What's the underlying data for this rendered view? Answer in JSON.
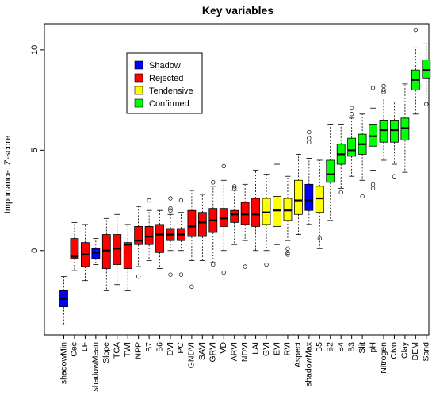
{
  "chart_data": {
    "type": "box",
    "title": "Key variables",
    "ylabel": "Importance: Z-score",
    "xlabel": "",
    "ylim": [
      -4.2,
      11.3
    ],
    "yticks": [
      0,
      5,
      10
    ],
    "legend": {
      "position": "top-left",
      "entries": [
        {
          "label": "Shadow",
          "color": "#0000FF"
        },
        {
          "label": "Rejected",
          "color": "#FF0000"
        },
        {
          "label": "Tendensive",
          "color": "#FFFF00"
        },
        {
          "label": "Confirmed",
          "color": "#00FF00"
        }
      ]
    },
    "boxes": [
      {
        "name": "shadowMin",
        "group": "Shadow",
        "whisker_low": -3.7,
        "q1": -2.8,
        "median": -2.4,
        "q3": -2.0,
        "whisker_high": -1.3,
        "outliers": []
      },
      {
        "name": "Cec",
        "group": "Rejected",
        "whisker_low": -1.0,
        "q1": -0.4,
        "median": -0.3,
        "q3": 0.6,
        "whisker_high": 1.4,
        "outliers": []
      },
      {
        "name": "LF",
        "group": "Rejected",
        "whisker_low": -1.5,
        "q1": -0.8,
        "median": -0.2,
        "q3": 0.4,
        "whisker_high": 1.3,
        "outliers": []
      },
      {
        "name": "shadowMean",
        "group": "Shadow",
        "whisker_low": -0.7,
        "q1": -0.4,
        "median": -0.1,
        "q3": 0.1,
        "whisker_high": 0.6,
        "outliers": []
      },
      {
        "name": "Slope",
        "group": "Rejected",
        "whisker_low": -2.0,
        "q1": -0.9,
        "median": 0.0,
        "q3": 0.8,
        "whisker_high": 1.6,
        "outliers": []
      },
      {
        "name": "TCA",
        "group": "Rejected",
        "whisker_low": -1.7,
        "q1": -0.7,
        "median": 0.1,
        "q3": 0.8,
        "whisker_high": 1.8,
        "outliers": []
      },
      {
        "name": "TWI",
        "group": "Rejected",
        "whisker_low": -2.0,
        "q1": -0.9,
        "median": 0.3,
        "q3": 0.4,
        "whisker_high": 1.3,
        "outliers": []
      },
      {
        "name": "NPP",
        "group": "Rejected",
        "whisker_low": -0.8,
        "q1": 0.3,
        "median": 0.5,
        "q3": 1.2,
        "whisker_high": 2.2,
        "outliers": [
          -1.3
        ]
      },
      {
        "name": "B7",
        "group": "Rejected",
        "whisker_low": -0.5,
        "q1": 0.3,
        "median": 0.7,
        "q3": 1.2,
        "whisker_high": 2.0,
        "outliers": [
          2.5
        ]
      },
      {
        "name": "B6",
        "group": "Rejected",
        "whisker_low": -0.9,
        "q1": -0.1,
        "median": 0.8,
        "q3": 1.3,
        "whisker_high": 2.0,
        "outliers": []
      },
      {
        "name": "DVI",
        "group": "Rejected",
        "whisker_low": 0.0,
        "q1": 0.5,
        "median": 0.8,
        "q3": 1.1,
        "whisker_high": 1.8,
        "outliers": [
          2.6,
          2.1,
          2.0,
          -1.2
        ]
      },
      {
        "name": "PC",
        "group": "Rejected",
        "whisker_low": 0.0,
        "q1": 0.5,
        "median": 0.8,
        "q3": 1.1,
        "whisker_high": 1.9,
        "outliers": [
          2.5,
          -1.2
        ]
      },
      {
        "name": "GNDVI",
        "group": "Rejected",
        "whisker_low": -0.5,
        "q1": 0.7,
        "median": 1.2,
        "q3": 2.0,
        "whisker_high": 3.0,
        "outliers": [
          -1.8
        ]
      },
      {
        "name": "SAVI",
        "group": "Rejected",
        "whisker_low": -0.5,
        "q1": 0.7,
        "median": 1.4,
        "q3": 1.9,
        "whisker_high": 2.8,
        "outliers": []
      },
      {
        "name": "GRVI",
        "group": "Rejected",
        "whisker_low": -0.6,
        "q1": 0.9,
        "median": 1.5,
        "q3": 2.1,
        "whisker_high": 3.2,
        "outliers": [
          3.4,
          -0.7
        ]
      },
      {
        "name": "VD",
        "group": "Rejected",
        "whisker_low": 0.0,
        "q1": 1.2,
        "median": 1.6,
        "q3": 2.1,
        "whisker_high": 3.5,
        "outliers": [
          4.2,
          -1.1
        ]
      },
      {
        "name": "ARVI",
        "group": "Rejected",
        "whisker_low": 0.3,
        "q1": 1.4,
        "median": 1.8,
        "q3": 2.0,
        "whisker_high": 3.0,
        "outliers": [
          3.2,
          3.1
        ]
      },
      {
        "name": "NDVI",
        "group": "Rejected",
        "whisker_low": 0.5,
        "q1": 1.3,
        "median": 1.8,
        "q3": 2.4,
        "whisker_high": 3.3,
        "outliers": [
          -0.8
        ]
      },
      {
        "name": "LAI",
        "group": "Rejected",
        "whisker_low": 0.0,
        "q1": 1.2,
        "median": 1.8,
        "q3": 2.6,
        "whisker_high": 4.0,
        "outliers": []
      },
      {
        "name": "GVI",
        "group": "Tendensive",
        "whisker_low": 0.0,
        "q1": 1.3,
        "median": 1.9,
        "q3": 2.6,
        "whisker_high": 3.8,
        "outliers": [
          -0.7
        ]
      },
      {
        "name": "EVI",
        "group": "Tendensive",
        "whisker_low": 0.3,
        "q1": 1.2,
        "median": 2.0,
        "q3": 2.7,
        "whisker_high": 4.3,
        "outliers": []
      },
      {
        "name": "RVI",
        "group": "Tendensive",
        "whisker_low": 0.5,
        "q1": 1.5,
        "median": 2.0,
        "q3": 2.6,
        "whisker_high": 3.7,
        "outliers": [
          0.1,
          -0.1,
          -0.2
        ]
      },
      {
        "name": "Aspect",
        "group": "Tendensive",
        "whisker_low": 0.8,
        "q1": 1.8,
        "median": 2.5,
        "q3": 3.5,
        "whisker_high": 4.8,
        "outliers": []
      },
      {
        "name": "shadowMax",
        "group": "Shadow",
        "whisker_low": 1.3,
        "q1": 2.0,
        "median": 2.5,
        "q3": 3.3,
        "whisker_high": 4.6,
        "outliers": [
          5.9,
          5.6,
          5.4
        ]
      },
      {
        "name": "B5",
        "group": "Tendensive",
        "whisker_low": 0.1,
        "q1": 1.9,
        "median": 2.6,
        "q3": 3.2,
        "whisker_high": 4.5,
        "outliers": [
          0.6
        ]
      },
      {
        "name": "B2",
        "group": "Confirmed",
        "whisker_low": 1.5,
        "q1": 3.4,
        "median": 3.8,
        "q3": 4.5,
        "whisker_high": 6.3,
        "outliers": []
      },
      {
        "name": "B4",
        "group": "Confirmed",
        "whisker_low": 3.1,
        "q1": 4.3,
        "median": 4.8,
        "q3": 5.3,
        "whisker_high": 6.3,
        "outliers": [
          2.9
        ]
      },
      {
        "name": "B3",
        "group": "Confirmed",
        "whisker_low": 3.7,
        "q1": 4.7,
        "median": 5.0,
        "q3": 5.6,
        "whisker_high": 6.6,
        "outliers": [
          7.1,
          6.8
        ]
      },
      {
        "name": "Slit",
        "group": "Confirmed",
        "whisker_low": 3.5,
        "q1": 4.8,
        "median": 5.3,
        "q3": 5.8,
        "whisker_high": 6.8,
        "outliers": [
          2.7
        ]
      },
      {
        "name": "pH",
        "group": "Confirmed",
        "whisker_low": 4.0,
        "q1": 5.2,
        "median": 5.7,
        "q3": 6.3,
        "whisker_high": 7.1,
        "outliers": [
          8.1,
          3.3,
          3.1
        ]
      },
      {
        "name": "Nitrogen",
        "group": "Confirmed",
        "whisker_low": 4.5,
        "q1": 5.4,
        "median": 6.0,
        "q3": 6.5,
        "whisker_high": 7.6,
        "outliers": [
          8.2,
          8.0,
          7.9
        ]
      },
      {
        "name": "Ctvo",
        "group": "Confirmed",
        "whisker_low": 4.3,
        "q1": 5.4,
        "median": 6.0,
        "q3": 6.5,
        "whisker_high": 7.4,
        "outliers": [
          3.7
        ]
      },
      {
        "name": "Clay",
        "group": "Confirmed",
        "whisker_low": 3.9,
        "q1": 5.5,
        "median": 6.1,
        "q3": 6.6,
        "whisker_high": 8.3,
        "outliers": []
      },
      {
        "name": "DEM",
        "group": "Confirmed",
        "whisker_low": 6.8,
        "q1": 8.0,
        "median": 8.5,
        "q3": 9.0,
        "whisker_high": 10.1,
        "outliers": [
          11.0
        ]
      },
      {
        "name": "Sand",
        "group": "Confirmed",
        "whisker_low": 7.6,
        "q1": 8.6,
        "median": 9.0,
        "q3": 9.5,
        "whisker_high": 10.3,
        "outliers": [
          7.3
        ]
      }
    ]
  }
}
